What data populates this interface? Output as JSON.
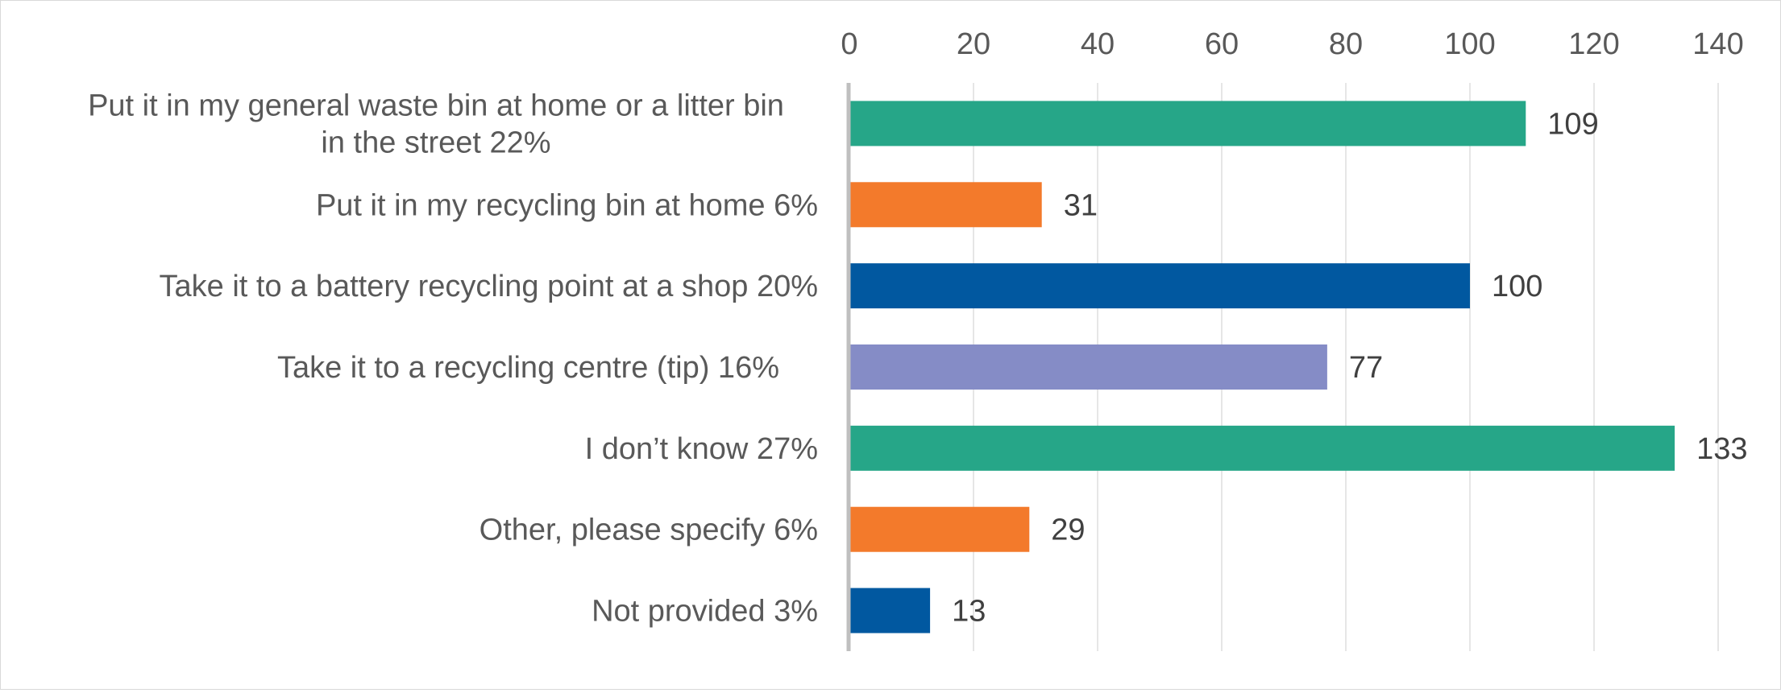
{
  "chart_data": {
    "type": "bar",
    "orientation": "horizontal",
    "title": "",
    "xlabel": "",
    "ylabel": "",
    "xlim": [
      0,
      140
    ],
    "ticks": [
      0,
      20,
      40,
      60,
      80,
      100,
      120,
      140
    ],
    "tick_labels": [
      "0",
      "20",
      "40",
      "60",
      "80",
      "100",
      "120",
      "140"
    ],
    "grid": true,
    "axis_position": "top",
    "categories": [
      {
        "lines": [
          "Put it in my general waste bin at home or a litter bin",
          "in the street 22%"
        ]
      },
      {
        "lines": [
          "Put it in my recycling bin at home 6%"
        ]
      },
      {
        "lines": [
          "Take it to a battery recycling point at a shop 20%"
        ]
      },
      {
        "lines": [
          "Take it to a recycling centre (tip) 16%"
        ]
      },
      {
        "lines": [
          "I don’t know 27%"
        ]
      },
      {
        "lines": [
          "Other, please specify 6%"
        ]
      },
      {
        "lines": [
          "Not provided 3%"
        ]
      }
    ],
    "values": [
      109,
      31,
      100,
      77,
      133,
      29,
      13
    ],
    "value_labels": [
      "109",
      "31",
      "100",
      "77",
      "133",
      "29",
      "13"
    ],
    "colors": [
      "#26a688",
      "#f37a2b",
      "#0158a0",
      "#858cc6",
      "#26a688",
      "#f37a2b",
      "#0158a0"
    ],
    "gridline_color": "#e6e6e6",
    "axis_color": "#bfbfbf"
  }
}
